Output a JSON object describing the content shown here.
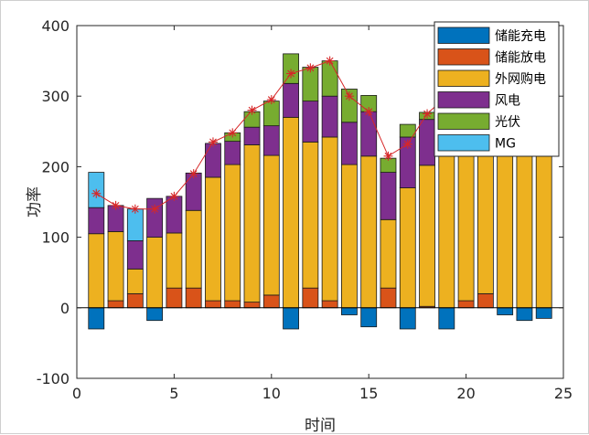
{
  "chart_data": {
    "type": "bar",
    "stacked": true,
    "xlabel": "时间",
    "ylabel": "功率",
    "xlim": [
      0,
      25
    ],
    "ylim": [
      -100,
      400
    ],
    "xticks": [
      "0",
      "5",
      "10",
      "15",
      "20",
      "25"
    ],
    "yticks": [
      "-100",
      "0",
      "100",
      "200",
      "300",
      "400"
    ],
    "grid": false,
    "legend_position": "top-right",
    "x": [
      1,
      2,
      3,
      4,
      5,
      6,
      7,
      8,
      9,
      10,
      11,
      12,
      13,
      14,
      15,
      16,
      17,
      18,
      19,
      20,
      21,
      22,
      23,
      24
    ],
    "series": [
      {
        "name": "储能充电",
        "color": "#0072BD",
        "values": [
          -30,
          0,
          0,
          -18,
          0,
          0,
          0,
          0,
          0,
          0,
          -30,
          0,
          0,
          -10,
          -27,
          0,
          -30,
          0,
          -30,
          0,
          0,
          -10,
          -18,
          -15
        ]
      },
      {
        "name": "储能放电",
        "color": "#D95319",
        "values": [
          0,
          10,
          20,
          0,
          28,
          28,
          10,
          10,
          8,
          18,
          0,
          28,
          10,
          0,
          0,
          28,
          0,
          2,
          0,
          10,
          20,
          0,
          0,
          0
        ]
      },
      {
        "name": "外网购电",
        "color": "#EDB120",
        "values": [
          105,
          98,
          35,
          100,
          78,
          110,
          175,
          193,
          223,
          198,
          270,
          207,
          232,
          203,
          215,
          97,
          170,
          200,
          300,
          290,
          280,
          260,
          250,
          245
        ]
      },
      {
        "name": "风电",
        "color": "#7E2F8E",
        "values": [
          37,
          37,
          40,
          55,
          52,
          53,
          48,
          33,
          25,
          42,
          48,
          58,
          58,
          60,
          63,
          67,
          72,
          65,
          0,
          0,
          0,
          0,
          0,
          0
        ]
      },
      {
        "name": "光伏",
        "color": "#77AC30",
        "values": [
          0,
          0,
          0,
          0,
          0,
          0,
          0,
          12,
          22,
          35,
          42,
          48,
          50,
          47,
          23,
          20,
          18,
          10,
          0,
          0,
          0,
          0,
          0,
          0
        ]
      },
      {
        "name": "MG",
        "color": "#4DBEEE",
        "values": [
          50,
          0,
          45,
          0,
          0,
          0,
          0,
          0,
          0,
          0,
          0,
          0,
          0,
          0,
          0,
          0,
          0,
          0,
          0,
          0,
          0,
          0,
          0,
          0
        ]
      }
    ],
    "load_line": {
      "color": "#D62728",
      "values": [
        162,
        145,
        140,
        140,
        158,
        190,
        235,
        248,
        280,
        295,
        332,
        340,
        350,
        300,
        278,
        215,
        232,
        275,
        300,
        300,
        300,
        300,
        300,
        300
      ]
    }
  }
}
